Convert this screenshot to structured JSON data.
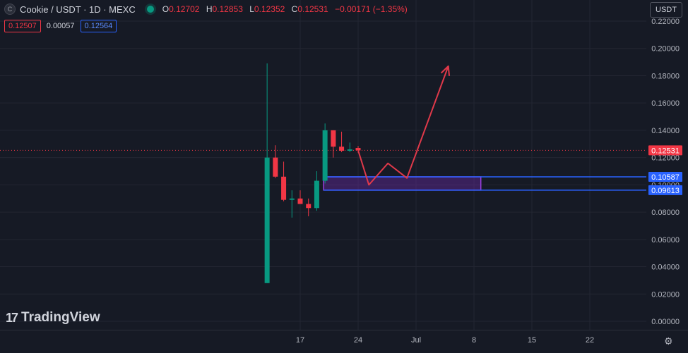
{
  "header": {
    "symbol_title": "Cookie / USDT · 1D · MEXC",
    "icon": "coin-icon",
    "ohlc": {
      "o_label": "O",
      "o_value": "0.12702",
      "h_label": "H",
      "h_value": "0.12853",
      "l_label": "L",
      "l_value": "0.12352",
      "c_label": "C",
      "c_value": "0.12531",
      "change": "−0.00171 (−1.35%)"
    }
  },
  "quote": {
    "sell": "0.12507",
    "spread": "0.00057",
    "buy": "0.12564"
  },
  "currency_button": "USDT",
  "logo_text": "TradingView",
  "colors": {
    "up": "#089981",
    "down": "#f23645",
    "zone": "#7b2fbf",
    "line_blue": "#2962ff",
    "arrow": "#e0394a"
  },
  "chart_data": {
    "type": "candlestick",
    "y_axis": {
      "ticks": [
        "0.22000",
        "0.20000",
        "0.18000",
        "0.16000",
        "0.14000",
        "0.12000",
        "0.10000",
        "0.08000",
        "0.06000",
        "0.04000",
        "0.02000",
        "0.00000"
      ],
      "range": [
        0.0,
        0.22
      ]
    },
    "x_axis": {
      "ticks": [
        "17",
        "24",
        "Jul",
        "8",
        "15",
        "22"
      ],
      "tick_days": [
        17,
        24,
        31,
        38,
        45,
        52
      ]
    },
    "candles": [
      {
        "day": 13,
        "o": 0.028,
        "h": 0.189,
        "l": 0.028,
        "c": 0.12
      },
      {
        "day": 14,
        "o": 0.12,
        "h": 0.129,
        "l": 0.105,
        "c": 0.106
      },
      {
        "day": 15,
        "o": 0.106,
        "h": 0.117,
        "l": 0.088,
        "c": 0.089
      },
      {
        "day": 16,
        "o": 0.089,
        "h": 0.096,
        "l": 0.076,
        "c": 0.09
      },
      {
        "day": 17,
        "o": 0.09,
        "h": 0.096,
        "l": 0.086,
        "c": 0.086
      },
      {
        "day": 18,
        "o": 0.086,
        "h": 0.09,
        "l": 0.077,
        "c": 0.083
      },
      {
        "day": 19,
        "o": 0.083,
        "h": 0.11,
        "l": 0.081,
        "c": 0.103
      },
      {
        "day": 20,
        "o": 0.103,
        "h": 0.145,
        "l": 0.101,
        "c": 0.14
      },
      {
        "day": 21,
        "o": 0.14,
        "h": 0.14,
        "l": 0.12,
        "c": 0.128
      },
      {
        "day": 22,
        "o": 0.128,
        "h": 0.139,
        "l": 0.124,
        "c": 0.125
      },
      {
        "day": 23,
        "o": 0.125,
        "h": 0.131,
        "l": 0.124,
        "c": 0.126
      },
      {
        "day": 24,
        "o": 0.12702,
        "h": 0.12853,
        "l": 0.12352,
        "c": 0.12531
      }
    ],
    "price_labels": [
      {
        "value": 0.12531,
        "text": "0.12531",
        "color": "#f23645"
      },
      {
        "value": 0.10587,
        "text": "0.10587",
        "color": "#2962ff"
      },
      {
        "value": 0.09613,
        "text": "0.09613",
        "color": "#2962ff"
      }
    ],
    "zone": {
      "start_day": 20,
      "end_day": 39,
      "top": 0.10587,
      "bottom": 0.09613
    },
    "projection_path": [
      {
        "day": 24,
        "value": 0.1253
      },
      {
        "day": 25.3,
        "value": 0.1
      },
      {
        "day": 27.6,
        "value": 0.1158
      },
      {
        "day": 29.9,
        "value": 0.105
      },
      {
        "day": 34.9,
        "value": 0.187
      }
    ]
  }
}
